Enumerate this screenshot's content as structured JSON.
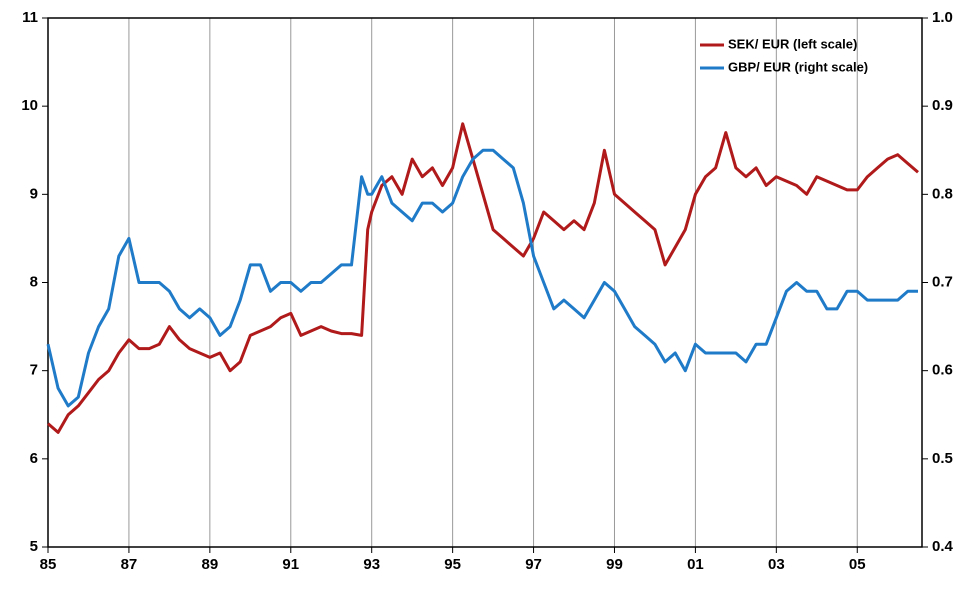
{
  "chart_data": {
    "type": "line",
    "x": [
      1985,
      1985.25,
      1985.5,
      1985.75,
      1986,
      1986.25,
      1986.5,
      1986.75,
      1987,
      1987.25,
      1987.5,
      1987.75,
      1988,
      1988.25,
      1988.5,
      1988.75,
      1989,
      1989.25,
      1989.5,
      1989.75,
      1990,
      1990.25,
      1990.5,
      1990.75,
      1991,
      1991.25,
      1991.5,
      1991.75,
      1992,
      1992.25,
      1992.5,
      1992.75,
      1992.9,
      1993,
      1993.25,
      1993.5,
      1993.75,
      1994,
      1994.25,
      1994.5,
      1994.75,
      1995,
      1995.25,
      1995.5,
      1995.75,
      1996,
      1996.25,
      1996.5,
      1996.75,
      1997,
      1997.25,
      1997.5,
      1997.75,
      1998,
      1998.25,
      1998.5,
      1998.75,
      1999,
      1999.25,
      1999.5,
      1999.75,
      2000,
      2000.25,
      2000.5,
      2000.75,
      2001,
      2001.25,
      2001.5,
      2001.75,
      2002,
      2002.25,
      2002.5,
      2002.75,
      2003,
      2003.25,
      2003.5,
      2003.75,
      2004,
      2004.25,
      2004.5,
      2004.75,
      2005,
      2005.25,
      2005.5,
      2005.75,
      2006,
      2006.25,
      2006.5
    ],
    "series": [
      {
        "name": "SEK/ EUR (left scale)",
        "color": "#b01a1a",
        "values": [
          6.4,
          6.3,
          6.5,
          6.6,
          6.75,
          6.9,
          7.0,
          7.2,
          7.35,
          7.25,
          7.25,
          7.3,
          7.5,
          7.35,
          7.25,
          7.2,
          7.15,
          7.2,
          7.0,
          7.1,
          7.4,
          7.45,
          7.5,
          7.6,
          7.65,
          7.4,
          7.45,
          7.5,
          7.45,
          7.42,
          7.42,
          7.4,
          8.6,
          8.8,
          9.1,
          9.2,
          9.0,
          9.4,
          9.2,
          9.3,
          9.1,
          9.3,
          9.8,
          9.4,
          9.0,
          8.6,
          8.5,
          8.4,
          8.3,
          8.5,
          8.8,
          8.7,
          8.6,
          8.7,
          8.6,
          8.9,
          9.5,
          9.0,
          8.9,
          8.8,
          8.7,
          8.6,
          8.2,
          8.4,
          8.6,
          9.0,
          9.2,
          9.3,
          9.7,
          9.3,
          9.2,
          9.3,
          9.1,
          9.2,
          9.15,
          9.1,
          9.0,
          9.2,
          9.15,
          9.1,
          9.05,
          9.05,
          9.2,
          9.3,
          9.4,
          9.45,
          9.35,
          9.25
        ]
      },
      {
        "name": "GBP/ EUR (right scale)",
        "color": "#1f7ac8",
        "axis": "y2",
        "values": [
          0.63,
          0.58,
          0.56,
          0.57,
          0.62,
          0.65,
          0.67,
          0.73,
          0.75,
          0.7,
          0.7,
          0.7,
          0.69,
          0.67,
          0.66,
          0.67,
          0.66,
          0.64,
          0.65,
          0.68,
          0.72,
          0.72,
          0.69,
          0.7,
          0.7,
          0.69,
          0.7,
          0.7,
          0.71,
          0.72,
          0.72,
          0.82,
          0.8,
          0.8,
          0.82,
          0.79,
          0.78,
          0.77,
          0.79,
          0.79,
          0.78,
          0.79,
          0.82,
          0.84,
          0.85,
          0.85,
          0.84,
          0.83,
          0.79,
          0.73,
          0.7,
          0.67,
          0.68,
          0.67,
          0.66,
          0.68,
          0.7,
          0.69,
          0.67,
          0.65,
          0.64,
          0.63,
          0.61,
          0.62,
          0.6,
          0.63,
          0.62,
          0.62,
          0.62,
          0.62,
          0.61,
          0.63,
          0.63,
          0.66,
          0.69,
          0.7,
          0.69,
          0.69,
          0.67,
          0.67,
          0.69,
          0.69,
          0.68,
          0.68,
          0.68,
          0.68,
          0.69,
          0.69
        ]
      }
    ],
    "xlim": [
      1985,
      2006.6
    ],
    "xticks": [
      {
        "value": 1985,
        "label": "85"
      },
      {
        "value": 1987,
        "label": "87"
      },
      {
        "value": 1989,
        "label": "89"
      },
      {
        "value": 1991,
        "label": "91"
      },
      {
        "value": 1993,
        "label": "93"
      },
      {
        "value": 1995,
        "label": "95"
      },
      {
        "value": 1997,
        "label": "97"
      },
      {
        "value": 1999,
        "label": "99"
      },
      {
        "value": 2001,
        "label": "01"
      },
      {
        "value": 2003,
        "label": "03"
      },
      {
        "value": 2005,
        "label": "05"
      }
    ],
    "ylim": [
      5,
      11
    ],
    "yticks": [
      5,
      6,
      7,
      8,
      9,
      10,
      11
    ],
    "y2lim": [
      0.4,
      1.0
    ],
    "y2ticks": [
      0.4,
      0.5,
      0.6,
      0.7,
      0.8,
      0.9,
      {
        "value": 1,
        "label": "1.0"
      }
    ],
    "grid": true,
    "legend": "top-right"
  }
}
